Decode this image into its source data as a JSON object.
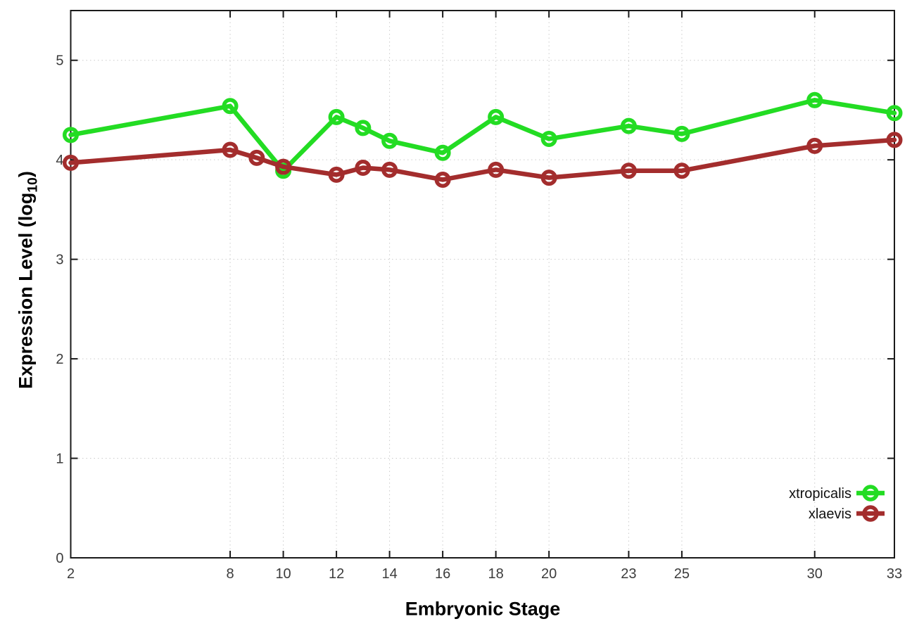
{
  "figure": {
    "background": "#ffffff"
  },
  "chart_data": {
    "type": "line",
    "title": "",
    "xlabel": "Embryonic Stage",
    "ylabel": "Expression Level (log10)",
    "ylabel_parts": {
      "pre": "Expression Level (log",
      "sub": "10",
      "post": ")"
    },
    "xlim": [
      2,
      33
    ],
    "ylim": [
      0,
      5.5
    ],
    "xticks": [
      2,
      8,
      10,
      12,
      14,
      16,
      18,
      20,
      23,
      25,
      30,
      33
    ],
    "yticks": [
      0,
      1,
      2,
      3,
      4,
      5
    ],
    "grid": true,
    "grid_style": "dotted",
    "legend_position": "inside-bottom-right",
    "marker": "open-circle",
    "series": [
      {
        "name": "xtropicalis",
        "color": "#23dc23",
        "points": [
          [
            2,
            4.25
          ],
          [
            8,
            4.54
          ],
          [
            10,
            3.89
          ],
          [
            12,
            4.43
          ],
          [
            13,
            4.32
          ],
          [
            14,
            4.19
          ],
          [
            16,
            4.07
          ],
          [
            18,
            4.43
          ],
          [
            20,
            4.21
          ],
          [
            23,
            4.34
          ],
          [
            25,
            4.26
          ],
          [
            30,
            4.6
          ],
          [
            33,
            4.47
          ]
        ]
      },
      {
        "name": "xlaevis",
        "color": "#a32d2d",
        "points": [
          [
            2,
            3.97
          ],
          [
            8,
            4.1
          ],
          [
            9,
            4.02
          ],
          [
            10,
            3.93
          ],
          [
            12,
            3.85
          ],
          [
            13,
            3.92
          ],
          [
            14,
            3.9
          ],
          [
            16,
            3.8
          ],
          [
            18,
            3.9
          ],
          [
            20,
            3.82
          ],
          [
            23,
            3.89
          ],
          [
            25,
            3.89
          ],
          [
            30,
            4.14
          ],
          [
            33,
            4.2
          ]
        ]
      }
    ]
  },
  "styles": {
    "grid_color": "#cbcbcb",
    "axis_color": "#1a1a1a",
    "tick_label_color": "#3c3c3c"
  }
}
